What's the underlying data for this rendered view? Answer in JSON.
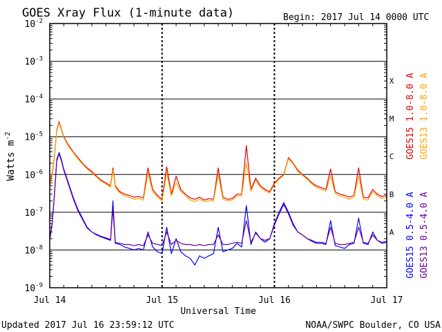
{
  "chart_data": {
    "type": "line",
    "title": "GOES Xray Flux (1-minute data)",
    "begin_label": "Begin:  2017 Jul 14 0000 UTC",
    "xlabel": "Universal Time",
    "ylabel": "Watts m",
    "ylabel_sup": "-2",
    "y_scale": "log",
    "ylim": [
      1e-09,
      0.01
    ],
    "xlim": [
      0,
      72
    ],
    "x_unit": "hours since 2017 Jul 14 0000 UTC",
    "y_ticks": [
      {
        "base": "10",
        "exp": "-2",
        "value": 0.01
      },
      {
        "base": "10",
        "exp": "-3",
        "value": 0.001
      },
      {
        "base": "10",
        "exp": "-4",
        "value": 0.0001
      },
      {
        "base": "10",
        "exp": "-5",
        "value": 1e-05
      },
      {
        "base": "10",
        "exp": "-6",
        "value": 1e-06
      },
      {
        "base": "10",
        "exp": "-7",
        "value": 1e-07
      },
      {
        "base": "10",
        "exp": "-8",
        "value": 1e-08
      },
      {
        "base": "10",
        "exp": "-9",
        "value": 1e-09
      }
    ],
    "x_ticks": [
      {
        "label": "Jul 14",
        "x": 0
      },
      {
        "label": "Jul 15",
        "x": 24
      },
      {
        "label": "Jul 16",
        "x": 48
      },
      {
        "label": "Jul 17",
        "x": 72
      }
    ],
    "flare_classes": [
      {
        "label": "X",
        "value": 0.0003
      },
      {
        "label": "M",
        "value": 3e-05
      },
      {
        "label": "C",
        "value": 3e-06
      },
      {
        "label": "B",
        "value": 3e-07
      },
      {
        "label": "A",
        "value": 3e-08
      }
    ],
    "series": [
      {
        "name": "GOES15 1.0-8.0 A",
        "color": "#e00000",
        "x": [
          0,
          0.5,
          1,
          1.5,
          2,
          2.5,
          3,
          4,
          5,
          6,
          7,
          8,
          9,
          10,
          11,
          12,
          13,
          13.5,
          14,
          15,
          16,
          17,
          18,
          19,
          20,
          21,
          22,
          23,
          24,
          25,
          26,
          27,
          28,
          29,
          30,
          31,
          32,
          33,
          34,
          35,
          36,
          37,
          38,
          39,
          40,
          41,
          42,
          43,
          44,
          45,
          46,
          47,
          48,
          49,
          50,
          51,
          52,
          53,
          54,
          55,
          56,
          57,
          58,
          59,
          60,
          61,
          62,
          63,
          64,
          65,
          66,
          67,
          68,
          69,
          70,
          71,
          72
        ],
        "y": [
          5e-07,
          1e-06,
          3e-06,
          1.5e-05,
          2.5e-05,
          1.6e-05,
          1e-05,
          6e-06,
          4e-06,
          2.8e-06,
          2e-06,
          1.5e-06,
          1.2e-06,
          9e-07,
          7e-07,
          6e-07,
          5e-07,
          1.5e-06,
          5e-07,
          3.5e-07,
          3e-07,
          2.8e-07,
          2.5e-07,
          2.6e-07,
          2.4e-07,
          1.5e-06,
          4e-07,
          2.8e-07,
          2.2e-07,
          1.6e-06,
          3e-07,
          9e-07,
          4e-07,
          3e-07,
          2.4e-07,
          2.2e-07,
          2.5e-07,
          2.1e-07,
          2.3e-07,
          2.2e-07,
          1.5e-06,
          2.5e-07,
          2.2e-07,
          2.3e-07,
          3e-07,
          3e-07,
          5.8e-06,
          4e-07,
          8e-07,
          5e-07,
          4e-07,
          3.5e-07,
          6e-07,
          8e-07,
          1e-06,
          2.8e-06,
          2e-06,
          1.3e-06,
          1e-06,
          8e-07,
          6e-07,
          5e-07,
          4.5e-07,
          4e-07,
          1.4e-06,
          3.5e-07,
          3e-07,
          2.8e-07,
          2.5e-07,
          2.8e-07,
          1.5e-06,
          2.5e-07,
          2.4e-07,
          4e-07,
          3e-07,
          2.6e-07,
          2.8e-07
        ]
      },
      {
        "name": "GOES13 1.0-8.0 A",
        "color": "#ffa500",
        "x": [
          0,
          0.5,
          1,
          1.5,
          2,
          2.5,
          3,
          4,
          5,
          6,
          7,
          8,
          9,
          10,
          11,
          12,
          13,
          13.5,
          14,
          15,
          16,
          17,
          18,
          19,
          20,
          21,
          22,
          23,
          24,
          25,
          26,
          27,
          28,
          29,
          30,
          31,
          32,
          33,
          34,
          35,
          36,
          37,
          38,
          39,
          40,
          41,
          42,
          43,
          44,
          45,
          46,
          47,
          48,
          49,
          50,
          51,
          52,
          53,
          54,
          55,
          56,
          57,
          58,
          59,
          60,
          61,
          62,
          63,
          64,
          65,
          66,
          67,
          68,
          69,
          70,
          71,
          72
        ],
        "y": [
          4.5e-07,
          9e-07,
          2.8e-06,
          1.4e-05,
          2.3e-05,
          1.5e-05,
          9.5e-06,
          5.6e-06,
          3.8e-06,
          2.6e-06,
          1.9e-06,
          1.4e-06,
          1.1e-06,
          8.5e-07,
          6.6e-07,
          5.6e-07,
          4.6e-07,
          1.3e-06,
          4.6e-07,
          3.2e-07,
          2.7e-07,
          2.5e-07,
          2.2e-07,
          2.3e-07,
          2.1e-07,
          1.1e-06,
          3.5e-07,
          2.5e-07,
          2e-07,
          1.1e-06,
          2.7e-07,
          6e-07,
          3.6e-07,
          2.7e-07,
          2.1e-07,
          1.9e-07,
          2.2e-07,
          1.9e-07,
          2e-07,
          2e-07,
          1e-06,
          2.2e-07,
          2e-07,
          2.1e-07,
          2.7e-07,
          2.7e-07,
          2e-06,
          3.6e-07,
          7e-07,
          4.6e-07,
          3.7e-07,
          3.2e-07,
          5.5e-07,
          7.5e-07,
          9.5e-07,
          2.6e-06,
          1.9e-06,
          1.2e-06,
          9.5e-07,
          7.5e-07,
          5.6e-07,
          4.6e-07,
          4.1e-07,
          3.6e-07,
          9e-07,
          3.1e-07,
          2.7e-07,
          2.5e-07,
          2.2e-07,
          2.5e-07,
          9e-07,
          2.2e-07,
          2.1e-07,
          3.5e-07,
          2.7e-07,
          2.3e-07,
          2.5e-07
        ]
      },
      {
        "name": "GOES15 0.5-4.0 A",
        "color": "#0000ff",
        "x": [
          0,
          0.5,
          1,
          1.5,
          2,
          2.5,
          3,
          4,
          5,
          6,
          7,
          8,
          9,
          10,
          11,
          12,
          13,
          13.5,
          14,
          15,
          16,
          17,
          18,
          19,
          20,
          21,
          22,
          23,
          24,
          25,
          26,
          27,
          28,
          29,
          30,
          31,
          32,
          33,
          34,
          35,
          36,
          37,
          38,
          39,
          40,
          41,
          42,
          43,
          44,
          45,
          46,
          47,
          48,
          49,
          50,
          51,
          52,
          53,
          54,
          55,
          56,
          57,
          58,
          59,
          60,
          61,
          62,
          63,
          64,
          65,
          66,
          67,
          68,
          69,
          70,
          71,
          72
        ],
        "y": [
          2e-08,
          5e-08,
          3e-07,
          2.5e-06,
          3.8e-06,
          2.5e-06,
          1.4e-06,
          6e-07,
          2.5e-07,
          1.2e-07,
          7e-08,
          4e-08,
          3e-08,
          2.5e-08,
          2.2e-08,
          2e-08,
          1.8e-08,
          2e-07,
          1.5e-08,
          1.4e-08,
          1.2e-08,
          1.1e-08,
          1e-08,
          1.1e-08,
          1e-08,
          3e-08,
          1.2e-08,
          9e-09,
          8e-09,
          4e-08,
          8e-09,
          2e-08,
          9e-09,
          7e-09,
          6e-09,
          4e-09,
          7e-09,
          6e-09,
          7e-09,
          8e-09,
          4e-08,
          9e-09,
          1e-08,
          1.1e-08,
          1.5e-08,
          1.2e-08,
          1.5e-07,
          1.4e-08,
          3e-08,
          2e-08,
          1.6e-08,
          2e-08,
          5e-08,
          1e-07,
          1.8e-07,
          1e-07,
          5e-08,
          3e-08,
          2.5e-08,
          2e-08,
          1.7e-08,
          1.5e-08,
          1.5e-08,
          1.4e-08,
          6e-08,
          1.3e-08,
          1.2e-08,
          1.1e-08,
          1.4e-08,
          1.5e-08,
          7e-08,
          1.5e-08,
          1.4e-08,
          3e-08,
          1.8e-08,
          1.5e-08,
          1.6e-08
        ]
      },
      {
        "name": "GOES13 0.5-4.0 A",
        "color": "#660099",
        "x": [
          0,
          0.5,
          1,
          1.5,
          2,
          2.5,
          3,
          4,
          5,
          6,
          7,
          8,
          9,
          10,
          11,
          12,
          13,
          13.5,
          14,
          15,
          16,
          17,
          18,
          19,
          20,
          21,
          22,
          23,
          24,
          25,
          26,
          27,
          28,
          29,
          30,
          31,
          32,
          33,
          34,
          35,
          36,
          37,
          38,
          39,
          40,
          41,
          42,
          43,
          44,
          45,
          46,
          47,
          48,
          49,
          50,
          51,
          52,
          53,
          54,
          55,
          56,
          57,
          58,
          59,
          60,
          61,
          62,
          63,
          64,
          65,
          66,
          67,
          68,
          69,
          70,
          71,
          72
        ],
        "y": [
          1.8e-08,
          4.5e-08,
          2.8e-07,
          2.3e-06,
          3.5e-06,
          2.3e-06,
          1.3e-06,
          5.5e-07,
          2.3e-07,
          1.1e-07,
          6.5e-08,
          3.8e-08,
          3e-08,
          2.6e-08,
          2.3e-08,
          2.1e-08,
          1.9e-08,
          1.2e-07,
          1.6e-08,
          1.5e-08,
          1.4e-08,
          1.4e-08,
          1.3e-08,
          1.4e-08,
          1.3e-08,
          2.5e-08,
          1.5e-08,
          1.4e-08,
          1.3e-08,
          3e-08,
          1.4e-08,
          1.8e-08,
          1.5e-08,
          1.4e-08,
          1.4e-08,
          1.3e-08,
          1.4e-08,
          1.3e-08,
          1.4e-08,
          1.4e-08,
          2.5e-08,
          1.4e-08,
          1.4e-08,
          1.5e-08,
          1.6e-08,
          1.5e-08,
          6e-08,
          1.6e-08,
          2.8e-08,
          2e-08,
          1.8e-08,
          2e-08,
          4.5e-08,
          9e-08,
          1.6e-07,
          9e-08,
          4.5e-08,
          3e-08,
          2.5e-08,
          2e-08,
          1.8e-08,
          1.6e-08,
          1.6e-08,
          1.5e-08,
          4e-08,
          1.5e-08,
          1.4e-08,
          1.4e-08,
          1.5e-08,
          1.6e-08,
          4e-08,
          1.6e-08,
          1.5e-08,
          2.5e-08,
          1.8e-08,
          1.6e-08,
          1.7e-08
        ]
      }
    ]
  },
  "footer": {
    "updated": "Updated 2017 Jul 16 23:59:12 UTC",
    "credit": "NOAA/SWPC Boulder, CO USA"
  }
}
